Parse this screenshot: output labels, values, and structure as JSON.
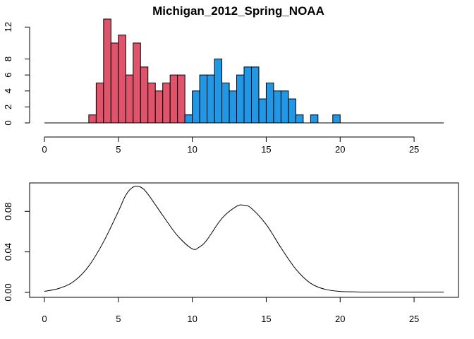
{
  "chart_data": [
    {
      "type": "bar",
      "title": "Michigan_2012_Spring_NOAA",
      "xlabel": "",
      "ylabel": "",
      "bin_width": 0.5,
      "xlim": [
        0,
        27
      ],
      "ylim": [
        0,
        13
      ],
      "x_ticks": [
        0,
        5,
        10,
        15,
        20,
        25
      ],
      "y_ticks": [
        0,
        2,
        4,
        6,
        8,
        12
      ],
      "grid": false,
      "colors": {
        "low": "#DF536B",
        "high": "#2297E6",
        "outline": "#000000"
      },
      "series": [
        {
          "bin_starts": [
            3.0,
            3.5,
            4.0,
            4.5,
            5.0,
            5.5,
            6.0,
            6.5,
            7.0,
            7.5,
            8.0,
            8.5,
            9.0,
            9.5
          ],
          "counts": [
            1,
            5,
            13,
            10,
            11,
            6,
            10,
            7,
            5,
            4,
            5,
            6,
            6,
            1
          ]
        },
        {
          "bin_starts": [
            9.5,
            10.0,
            10.5,
            11.0,
            11.5,
            12.0,
            12.5,
            13.0,
            13.5,
            14.0,
            14.5,
            15.0,
            15.5,
            16.0,
            16.5,
            17.0,
            17.5,
            18.0,
            18.5,
            19.0,
            19.5
          ],
          "counts": [
            1,
            4,
            6,
            6,
            8,
            5,
            4,
            6,
            7,
            7,
            3,
            5,
            4,
            4,
            3,
            1,
            0,
            1,
            0,
            0,
            1
          ]
        }
      ]
    },
    {
      "type": "line",
      "title": "",
      "xlabel": "",
      "ylabel": "",
      "xlim": [
        0,
        27
      ],
      "ylim": [
        0,
        0.106
      ],
      "x_ticks": [
        0,
        5,
        10,
        15,
        20,
        25
      ],
      "y_ticks": [
        0.0,
        0.04,
        0.08
      ],
      "y_tick_labels": [
        "0.00",
        "0.04",
        "0.08"
      ],
      "grid": false,
      "series": [
        {
          "x": [
            0,
            1,
            2,
            3,
            4,
            5,
            5.5,
            6,
            6.5,
            7,
            8,
            9,
            10,
            10.5,
            11,
            12,
            13,
            13.5,
            14,
            15,
            16,
            17,
            18,
            19,
            20,
            21,
            22,
            27
          ],
          "y": [
            0.001,
            0.004,
            0.011,
            0.026,
            0.05,
            0.08,
            0.096,
            0.104,
            0.104,
            0.097,
            0.076,
            0.056,
            0.043,
            0.045,
            0.052,
            0.073,
            0.085,
            0.086,
            0.083,
            0.067,
            0.044,
            0.023,
            0.009,
            0.003,
            0.001,
            0.0005,
            0.0003,
            0.0003
          ]
        }
      ]
    }
  ]
}
